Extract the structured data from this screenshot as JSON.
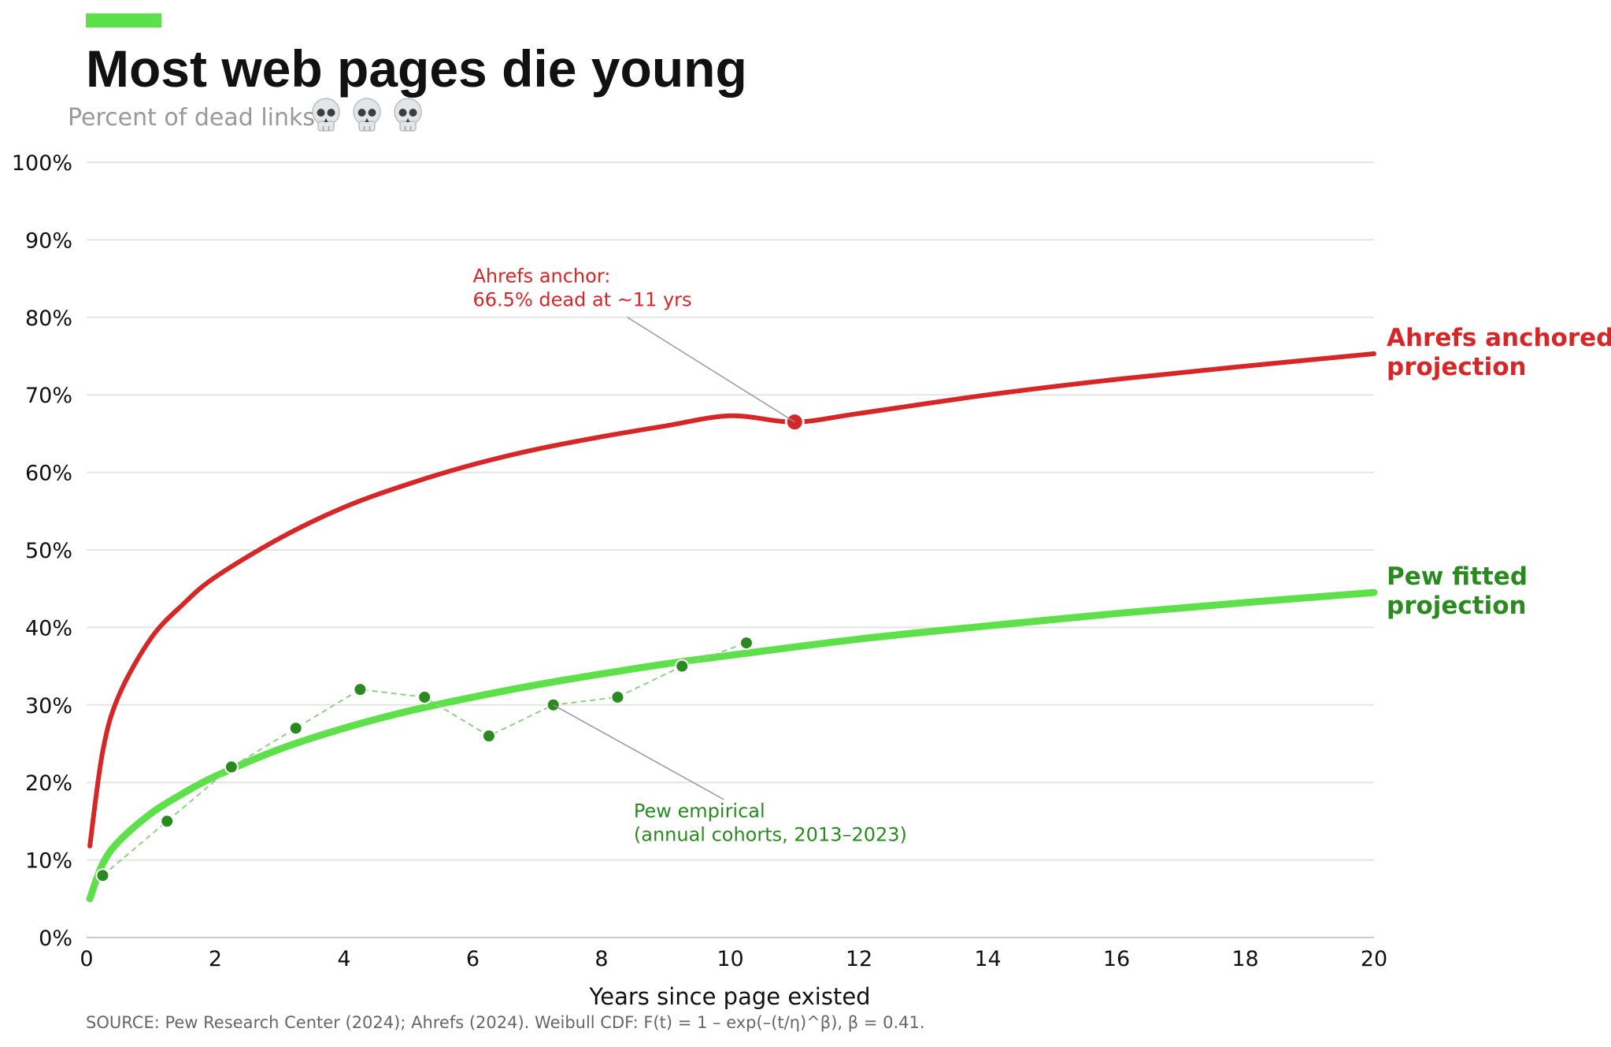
{
  "chart_data": {
    "type": "line",
    "title": "Most web pages die young",
    "subtitle": "Percent of dead links",
    "subtitle_icons": [
      "skull-icon",
      "skull-icon",
      "skull-icon"
    ],
    "xlabel": "Years since page existed",
    "ylabel": "",
    "xlim": [
      0,
      20
    ],
    "ylim": [
      0,
      100
    ],
    "x_ticks": [
      0,
      2,
      4,
      6,
      8,
      10,
      12,
      14,
      16,
      18,
      20
    ],
    "y_ticks": [
      0,
      10,
      20,
      30,
      40,
      50,
      60,
      70,
      80,
      90,
      100
    ],
    "x_tick_labels": [
      "0",
      "2",
      "4",
      "6",
      "8",
      "10",
      "12",
      "14",
      "16",
      "18",
      "20"
    ],
    "y_tick_labels": [
      "0%",
      "10%",
      "20%",
      "30%",
      "40%",
      "50%",
      "60%",
      "70%",
      "80%",
      "90%",
      "100%"
    ],
    "grid": "horizontal",
    "series": [
      {
        "name": "Ahrefs anchored projection",
        "label_lines": [
          "Ahrefs anchored",
          "projection"
        ],
        "color": "#d62728",
        "kind": "curve",
        "x": [
          0.05,
          0.25,
          0.5,
          1,
          1.5,
          2,
          3,
          4,
          5,
          6,
          7,
          8,
          9,
          10,
          11,
          12,
          14,
          16,
          18,
          20
        ],
        "values": [
          11.8,
          24.0,
          31.2,
          38.6,
          43.0,
          46.5,
          51.5,
          55.5,
          58.5,
          61.0,
          63.0,
          64.6,
          66.0,
          67.3,
          66.5,
          67.6,
          70.0,
          72.0,
          73.7,
          75.3
        ]
      },
      {
        "name": "Pew fitted projection",
        "label_lines": [
          "Pew fitted",
          "projection"
        ],
        "color": "#5ee04a",
        "label_color": "#2a8a1f",
        "kind": "curve",
        "x": [
          0.05,
          0.25,
          0.5,
          1,
          1.5,
          2,
          3,
          4,
          5,
          6,
          7,
          8,
          9,
          10,
          12,
          14,
          16,
          18,
          20
        ],
        "values": [
          5.0,
          9.5,
          12.4,
          16.0,
          18.6,
          20.8,
          24.3,
          27.0,
          29.2,
          31.0,
          32.6,
          34.0,
          35.3,
          36.4,
          38.5,
          40.2,
          41.8,
          43.2,
          44.5
        ]
      },
      {
        "name": "Pew empirical",
        "color": "#2a8a1f",
        "line_color": "#8fd087",
        "kind": "points",
        "x": [
          0.25,
          1.25,
          2.25,
          3.25,
          4.25,
          5.25,
          6.25,
          7.25,
          8.25,
          9.25,
          10.25
        ],
        "values": [
          8,
          15,
          22,
          27,
          32,
          31,
          26,
          30,
          31,
          35,
          38
        ]
      }
    ],
    "anchor_point": {
      "x": 11,
      "y": 66.5,
      "color": "#d62728"
    },
    "annotations": [
      {
        "id": "ahrefs",
        "lines": [
          "Ahrefs anchor:",
          "66.5% dead at ~11 yrs"
        ],
        "color": "#d62728",
        "target_x": 11,
        "target_y": 66.5,
        "text_x": 6.0,
        "text_y": 84.5,
        "leader_from_x": 8.4,
        "leader_from_y": 80.0
      },
      {
        "id": "pew",
        "lines": [
          "Pew empirical",
          "(annual cohorts, 2013–2023)"
        ],
        "color": "#2a8a1f",
        "target_x": 7.25,
        "target_y": 30,
        "text_x": 8.5,
        "text_y": 15.5,
        "leader_from_x": 9.9,
        "leader_from_y": 17.8
      }
    ],
    "source": "SOURCE: Pew Research Center (2024); Ahrefs (2024). Weibull CDF: F(t) = 1 – exp(–(t/η)^β), β = 0.41.",
    "colors": {
      "accent_bar": "#5ee04a",
      "grid": "#e5e5e5",
      "axis": "#cccccc",
      "title": "#111111",
      "subtitle": "#999999",
      "source": "#666666"
    }
  }
}
